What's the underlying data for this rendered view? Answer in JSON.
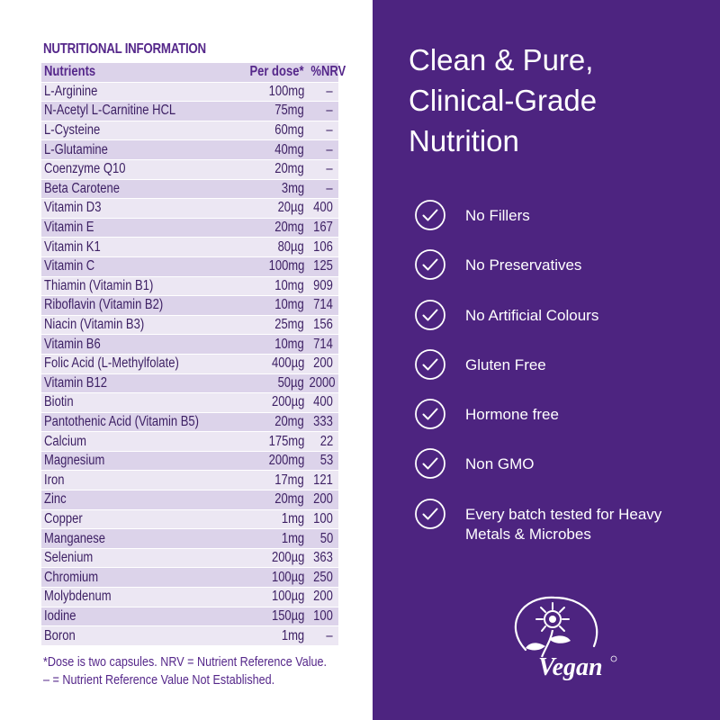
{
  "nutrition": {
    "title": "NUTRITIONAL INFORMATION",
    "headers": {
      "name": "Nutrients",
      "dose": "Per dose*",
      "nrv": "%NRV"
    },
    "rows": [
      {
        "name": "L-Arginine",
        "dose": "100mg",
        "nrv": "–"
      },
      {
        "name": "N-Acetyl L-Carnitine HCL",
        "dose": "75mg",
        "nrv": "–"
      },
      {
        "name": "L-Cysteine",
        "dose": "60mg",
        "nrv": "–"
      },
      {
        "name": "L-Glutamine",
        "dose": "40mg",
        "nrv": "–"
      },
      {
        "name": "Coenzyme Q10",
        "dose": "20mg",
        "nrv": "–"
      },
      {
        "name": "Beta Carotene",
        "dose": "3mg",
        "nrv": "–"
      },
      {
        "name": "Vitamin D3",
        "dose": "20µg",
        "nrv": "400"
      },
      {
        "name": "Vitamin E",
        "dose": "20mg",
        "nrv": "167"
      },
      {
        "name": "Vitamin K1",
        "dose": "80µg",
        "nrv": "106"
      },
      {
        "name": "Vitamin C",
        "dose": "100mg",
        "nrv": "125"
      },
      {
        "name": "Thiamin (Vitamin B1)",
        "dose": "10mg",
        "nrv": "909"
      },
      {
        "name": "Riboflavin (Vitamin B2)",
        "dose": "10mg",
        "nrv": "714"
      },
      {
        "name": "Niacin (Vitamin B3)",
        "dose": "25mg",
        "nrv": "156"
      },
      {
        "name": "Vitamin B6",
        "dose": "10mg",
        "nrv": "714"
      },
      {
        "name": "Folic Acid (L-Methylfolate)",
        "dose": "400µg",
        "nrv": "200"
      },
      {
        "name": "Vitamin B12",
        "dose": "50µg",
        "nrv": "2000"
      },
      {
        "name": "Biotin",
        "dose": "200µg",
        "nrv": "400"
      },
      {
        "name": "Pantothenic Acid (Vitamin B5)",
        "dose": "20mg",
        "nrv": "333"
      },
      {
        "name": "Calcium",
        "dose": "175mg",
        "nrv": "22"
      },
      {
        "name": "Magnesium",
        "dose": "200mg",
        "nrv": "53"
      },
      {
        "name": "Iron",
        "dose": "17mg",
        "nrv": "121"
      },
      {
        "name": "Zinc",
        "dose": "20mg",
        "nrv": "200"
      },
      {
        "name": "Copper",
        "dose": "1mg",
        "nrv": "100"
      },
      {
        "name": "Manganese",
        "dose": "1mg",
        "nrv": "50"
      },
      {
        "name": "Selenium",
        "dose": "200µg",
        "nrv": "363"
      },
      {
        "name": "Chromium",
        "dose": "100µg",
        "nrv": "250"
      },
      {
        "name": "Molybdenum",
        "dose": "100µg",
        "nrv": "200"
      },
      {
        "name": "Iodine",
        "dose": "150µg",
        "nrv": "100"
      },
      {
        "name": "Boron",
        "dose": "1mg",
        "nrv": "–"
      }
    ],
    "notes": [
      "*Dose is two capsules. NRV = Nutrient Reference Value.",
      "– = Nutrient Reference Value Not Established."
    ]
  },
  "promo": {
    "headline": [
      "Clean & Pure,",
      "Clinical-Grade",
      "Nutrition"
    ],
    "features": [
      {
        "text": "No Fillers",
        "icon": "check-circle-icon"
      },
      {
        "text": "No Preservatives",
        "icon": "check-circle-icon"
      },
      {
        "text": "No Artificial Colours",
        "icon": "check-circle-icon"
      },
      {
        "text": "Gluten Free",
        "icon": "check-circle-icon"
      },
      {
        "text": "Hormone free",
        "icon": "check-circle-icon"
      },
      {
        "text": "Non GMO",
        "icon": "check-circle-icon"
      },
      {
        "text": "Every batch tested for Heavy Metals & Microbes",
        "icon": "check-circle-icon"
      }
    ],
    "badge": {
      "text": "Vegan",
      "icon": "vegan-sunflower-logo"
    }
  },
  "colors": {
    "panel_purple": "#4d2480",
    "text_purple": "#55278a",
    "row_dark": "#dcd3ea",
    "row_light": "#ece7f3"
  }
}
